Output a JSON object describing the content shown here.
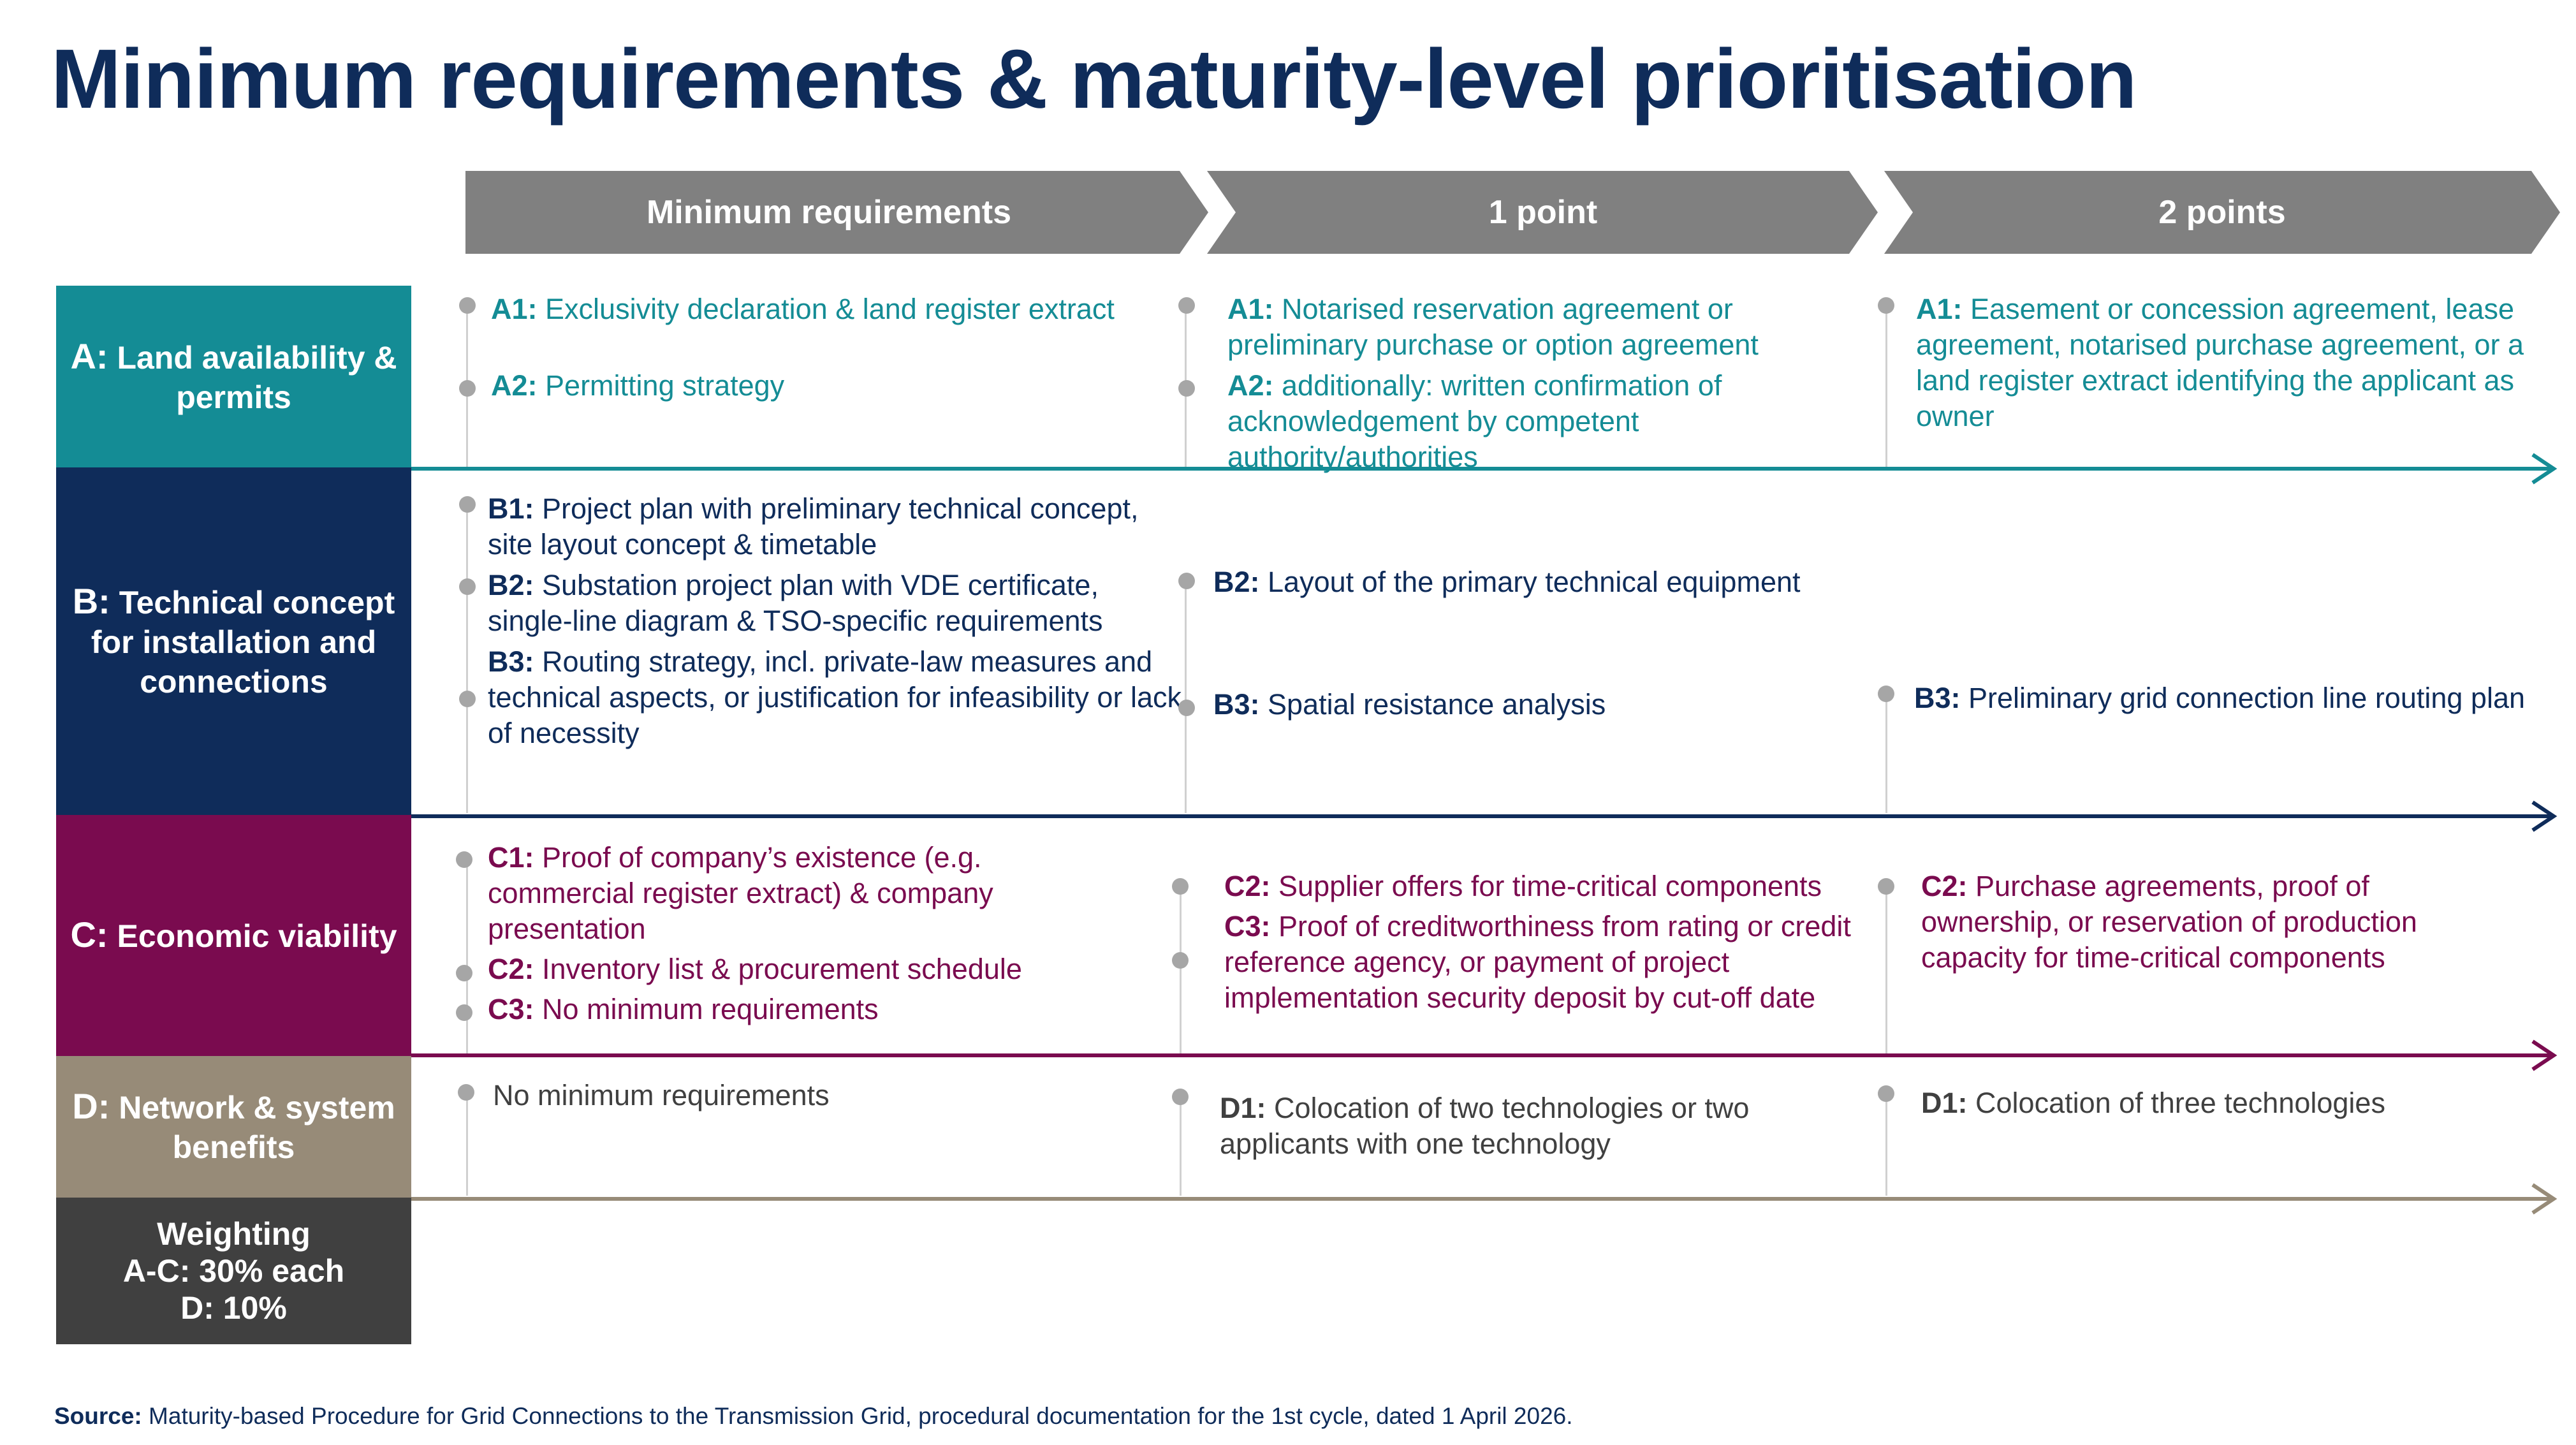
{
  "title": "Minimum requirements & maturity-level prioritisation",
  "colors": {
    "title": "#0f2c5a",
    "chevron": "#808080",
    "row_a": "#148c95",
    "row_b": "#0f2c5a",
    "row_c": "#7a0b4f",
    "row_d": "#978b78",
    "weighting": "#404040",
    "bullet": "#a6a6a6"
  },
  "columns": [
    "Minimum requirements",
    "1 point",
    "2 points"
  ],
  "rows": [
    {
      "letter": "A:",
      "label": "Land availability & permits",
      "cells": [
        [
          {
            "code": "A1:",
            "text": "Exclusivity declaration & land register extract"
          },
          {
            "code": "A2:",
            "text": "Permitting strategy"
          }
        ],
        [
          {
            "code": "A1:",
            "text": "Notarised reservation agreement or preliminary purchase or option agreement"
          },
          {
            "code": "A2:",
            "text": "additionally: written confirmation of acknowledgement by competent authority/authorities"
          }
        ],
        [
          {
            "code": "A1:",
            "text": "Easement or concession agreement, lease agreement, notarised purchase agreement, or a land register extract identifying the applicant as owner"
          }
        ]
      ]
    },
    {
      "letter": "B:",
      "label": "Technical concept for installation and connections",
      "cells": [
        [
          {
            "code": "B1:",
            "text": "Project plan with preliminary technical concept, site layout concept & timetable"
          },
          {
            "code": "B2:",
            "text": "Substation project plan with VDE certificate, single-line diagram & TSO-specific requirements"
          },
          {
            "code": "B3:",
            "text": "Routing strategy, incl. private-law measures and technical aspects, or justification for infeasibility or lack of necessity"
          }
        ],
        [
          {
            "code": "B2:",
            "text": "Layout of the primary technical equipment"
          },
          {
            "code": "B3:",
            "text": "Spatial resistance analysis"
          }
        ],
        [
          {
            "code": "B3:",
            "text": "Preliminary grid connection line routing plan"
          }
        ]
      ]
    },
    {
      "letter": "C:",
      "label": "Economic viability",
      "cells": [
        [
          {
            "code": "C1:",
            "text": "Proof of company’s existence (e.g. commercial register extract) & company presentation"
          },
          {
            "code": "C2:",
            "text": "Inventory list & procurement schedule"
          },
          {
            "code": "C3:",
            "text": "No minimum requirements"
          }
        ],
        [
          {
            "code": "C2:",
            "text": "Supplier offers for time-critical components"
          },
          {
            "code": "C3:",
            "text": "Proof of creditworthiness from rating or credit reference agency, or payment of project implementation security deposit by cut-off date"
          }
        ],
        [
          {
            "code": "C2:",
            "text": "Purchase agreements, proof of ownership, or reservation of production capacity for time-critical components"
          }
        ]
      ]
    },
    {
      "letter": "D:",
      "label": "Network & system benefits",
      "cells": [
        [
          {
            "code": "",
            "text": "No minimum requirements"
          }
        ],
        [
          {
            "code": "D1:",
            "text": "Colocation of two technologies or two applicants with one technology"
          }
        ],
        [
          {
            "code": "D1:",
            "text": "Colocation of three technologies"
          }
        ]
      ]
    }
  ],
  "weighting": {
    "title": "Weighting",
    "line1": "A-C: 30% each",
    "line2": "D: 10%"
  },
  "source": {
    "label": "Source:",
    "text": "Maturity-based Procedure for Grid Connections to the Transmission Grid, procedural documentation for the 1st cycle, dated 1 April 2026."
  }
}
